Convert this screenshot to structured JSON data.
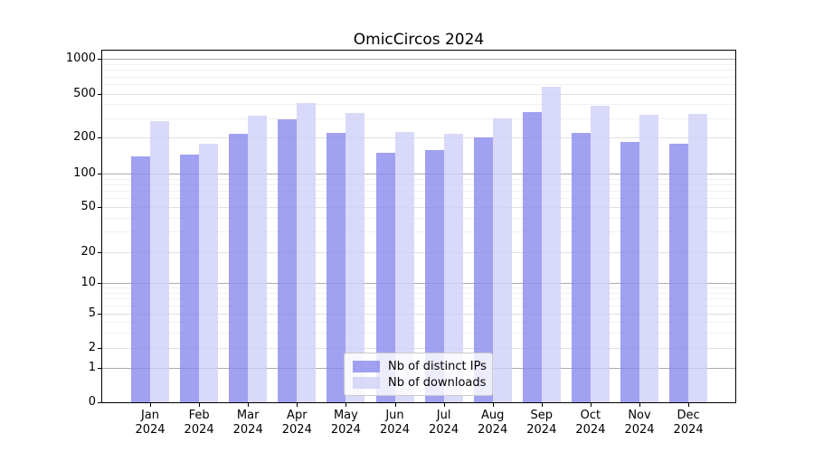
{
  "title": "OmicCircos 2024",
  "chart_data": {
    "type": "bar",
    "title": "OmicCircos 2024",
    "xlabel": "",
    "ylabel": "",
    "year": "2024",
    "categories": [
      "Jan",
      "Feb",
      "Mar",
      "Apr",
      "May",
      "Jun",
      "Jul",
      "Aug",
      "Sep",
      "Oct",
      "Nov",
      "Dec"
    ],
    "series": [
      {
        "key": "distinct-ips",
        "name": "Nb of distinct IPs",
        "color": "#8A8AEE",
        "alpha": 0.8,
        "values": [
          138,
          143,
          217,
          291,
          220,
          149,
          158,
          201,
          337,
          221,
          183,
          176
        ]
      },
      {
        "key": "downloads",
        "name": "Nb of downloads",
        "color": "#CFCFF8",
        "alpha": 0.8,
        "values": [
          283,
          176,
          315,
          410,
          336,
          224,
          214,
          300,
          568,
          391,
          321,
          330
        ]
      }
    ],
    "yscale": "symlog",
    "ylim": [
      0,
      1180
    ],
    "yticks": [
      0,
      1,
      2,
      5,
      10,
      20,
      50,
      100,
      200,
      500,
      1000
    ],
    "yticks_minor": [
      3,
      4,
      6,
      7,
      8,
      9,
      30,
      40,
      60,
      70,
      80,
      90,
      300,
      400,
      600,
      700,
      800,
      900
    ],
    "grid": true,
    "legend_position": "lower center"
  },
  "style": {
    "background": "#FFFFFF",
    "axis_color": "#000000",
    "grid_power10_color": "#ABABAB",
    "grid_major_color": "#E0E0E0",
    "grid_minor_color": "#F0F0F0",
    "legend_border_color": "#CCCCCC"
  }
}
